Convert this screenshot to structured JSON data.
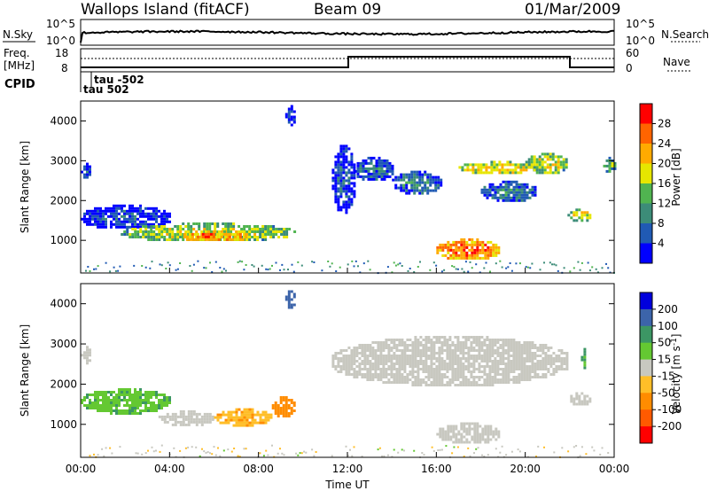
{
  "title": {
    "station": "Wallops Island (fitACF)",
    "beam": "Beam 09",
    "date": "01/Mar/2009"
  },
  "noise_panel": {
    "left_label": "N.Sky",
    "right_label": "N.Search",
    "left_ticks": [
      "10^5",
      "10^0"
    ],
    "right_ticks": [
      "10^5",
      "10^0"
    ]
  },
  "freq_panel": {
    "left_label_line1": "Freq.",
    "left_label_line2": "[MHz]",
    "right_label": "Nave",
    "left_ticks": [
      "18",
      "8"
    ],
    "right_ticks": [
      "60",
      "0"
    ]
  },
  "cpid_panel": {
    "label": "CPID",
    "annotations": [
      "tau -502",
      "tau 502"
    ]
  },
  "range_axis_label": "Slant Range [km]",
  "x_axis_label": "Time UT",
  "x_tick_labels": [
    "00:00",
    "04:00",
    "08:00",
    "12:00",
    "16:00",
    "20:00",
    "00:00"
  ],
  "y_tick_labels": [
    "1000",
    "2000",
    "3000",
    "4000"
  ],
  "colors": {
    "ground_scatter": "#c8c8c0",
    "power_scale": [
      "#0000ff",
      "#205ab4",
      "#3c8c78",
      "#50b450",
      "#e6e600",
      "#ffaa00",
      "#ff6400",
      "#ff0000"
    ],
    "velocity_scale": [
      "#ff0000",
      "#ff5a00",
      "#ff8c00",
      "#ffbe28",
      "#c8c8c0",
      "#64c832",
      "#3c9664",
      "#3c64aa",
      "#0000dc"
    ]
  },
  "chart_data": [
    {
      "type": "heatmap",
      "panel": "power",
      "colorbar_label": "Power [dB]",
      "colorbar_ticks": [
        "4",
        "8",
        "12",
        "16",
        "20",
        "24",
        "28"
      ],
      "colorbar_range": [
        0,
        32
      ],
      "xlim_hours": [
        0,
        24
      ],
      "ylim_km": [
        180,
        4500
      ],
      "regions": [
        {
          "hours": [
            0.0,
            0.4
          ],
          "range_km": [
            2550,
            2950
          ],
          "power_db": 6
        },
        {
          "hours": [
            0.0,
            4.0
          ],
          "range_km": [
            1300,
            1900
          ],
          "power_db": 6
        },
        {
          "hours": [
            1.8,
            9.6
          ],
          "range_km": [
            1000,
            1450
          ],
          "power_db": 18
        },
        {
          "hours": [
            4.5,
            7.5
          ],
          "range_km": [
            1000,
            1250
          ],
          "power_db": 26
        },
        {
          "hours": [
            9.2,
            9.6
          ],
          "range_km": [
            3900,
            4400
          ],
          "power_db": 4
        },
        {
          "hours": [
            11.3,
            12.3
          ],
          "range_km": [
            1700,
            3400
          ],
          "power_db": 6
        },
        {
          "hours": [
            12.3,
            14.0
          ],
          "range_km": [
            2500,
            3100
          ],
          "power_db": 8
        },
        {
          "hours": [
            14.0,
            16.2
          ],
          "range_km": [
            2200,
            2750
          ],
          "power_db": 10
        },
        {
          "hours": [
            16.0,
            18.8
          ],
          "range_km": [
            530,
            1050
          ],
          "power_db": 27
        },
        {
          "hours": [
            17.0,
            20.5
          ],
          "range_km": [
            2700,
            3000
          ],
          "power_db": 20
        },
        {
          "hours": [
            20.0,
            21.9
          ],
          "range_km": [
            2700,
            3200
          ],
          "power_db": 18
        },
        {
          "hours": [
            18.0,
            20.5
          ],
          "range_km": [
            2000,
            2500
          ],
          "power_db": 10
        },
        {
          "hours": [
            21.9,
            22.9
          ],
          "range_km": [
            1500,
            1800
          ],
          "power_db": 20
        },
        {
          "hours": [
            23.5,
            24.0
          ],
          "range_km": [
            2700,
            3100
          ],
          "power_db": 14
        }
      ]
    },
    {
      "type": "heatmap",
      "panel": "velocity",
      "colorbar_label": "Velocity [m s^-1]",
      "colorbar_ticks": [
        "200",
        "100",
        "50",
        "15",
        "-15",
        "-50",
        "-100",
        "-200"
      ],
      "colorbar_range": [
        -250,
        250
      ],
      "xlim_hours": [
        0,
        24
      ],
      "ylim_km": [
        180,
        4500
      ],
      "regions": [
        {
          "hours": [
            0.0,
            0.4
          ],
          "range_km": [
            2550,
            2950
          ],
          "velocity_ms": 0,
          "ground_scatter": true
        },
        {
          "hours": [
            0.0,
            4.0
          ],
          "range_km": [
            1300,
            1900
          ],
          "velocity_ms": 40
        },
        {
          "hours": [
            3.5,
            6.0
          ],
          "range_km": [
            1000,
            1350
          ],
          "velocity_ms": 0,
          "ground_scatter": true
        },
        {
          "hours": [
            6.0,
            8.6
          ],
          "range_km": [
            1000,
            1400
          ],
          "velocity_ms": -40
        },
        {
          "hours": [
            8.6,
            9.6
          ],
          "range_km": [
            1200,
            1700
          ],
          "velocity_ms": -80
        },
        {
          "hours": [
            9.2,
            9.6
          ],
          "range_km": [
            3900,
            4400
          ],
          "velocity_ms": 120
        },
        {
          "hours": [
            11.3,
            21.9
          ],
          "range_km": [
            2000,
            3200
          ],
          "velocity_ms": 0,
          "ground_scatter": true
        },
        {
          "hours": [
            16.0,
            18.8
          ],
          "range_km": [
            530,
            1050
          ],
          "velocity_ms": 0,
          "ground_scatter": true
        },
        {
          "hours": [
            21.9,
            22.9
          ],
          "range_km": [
            1500,
            1800
          ],
          "velocity_ms": 0,
          "ground_scatter": true
        },
        {
          "hours": [
            22.5,
            22.7
          ],
          "range_km": [
            2400,
            2900
          ],
          "velocity_ms": 60
        }
      ]
    }
  ]
}
